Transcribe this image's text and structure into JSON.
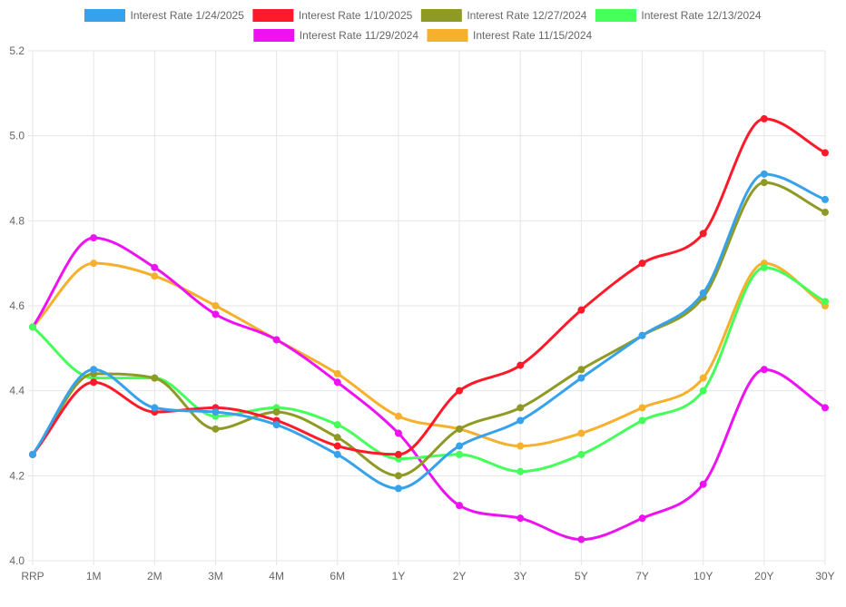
{
  "chart_data": {
    "type": "line",
    "categories": [
      "RRP",
      "1M",
      "2M",
      "3M",
      "4M",
      "6M",
      "1Y",
      "2Y",
      "3Y",
      "5Y",
      "7Y",
      "10Y",
      "20Y",
      "30Y"
    ],
    "ylim": [
      4.0,
      5.2
    ],
    "yticks": [
      "4.0",
      "4.2",
      "4.4",
      "4.6",
      "4.8",
      "5.0",
      "5.2"
    ],
    "grid": true,
    "legend_position": "top",
    "series": [
      {
        "name": "Interest Rate 1/24/2025",
        "color": "#36a2eb",
        "values": [
          4.25,
          4.45,
          4.36,
          4.35,
          4.32,
          4.25,
          4.17,
          4.27,
          4.33,
          4.43,
          4.53,
          4.63,
          4.91,
          4.85
        ]
      },
      {
        "name": "Interest Rate 1/10/2025",
        "color": "#ff1a2a",
        "values": [
          4.25,
          4.42,
          4.35,
          4.36,
          4.33,
          4.27,
          4.25,
          4.4,
          4.46,
          4.59,
          4.7,
          4.77,
          5.04,
          4.96
        ]
      },
      {
        "name": "Interest Rate 12/27/2024",
        "color": "#8f9a25",
        "values": [
          4.25,
          4.44,
          4.43,
          4.31,
          4.35,
          4.29,
          4.2,
          4.31,
          4.36,
          4.45,
          4.53,
          4.62,
          4.89,
          4.82
        ]
      },
      {
        "name": "Interest Rate 12/13/2024",
        "color": "#45ff5a",
        "values": [
          4.55,
          4.43,
          4.43,
          4.34,
          4.36,
          4.32,
          4.24,
          4.25,
          4.21,
          4.25,
          4.33,
          4.4,
          4.69,
          4.61
        ]
      },
      {
        "name": "Interest Rate 11/29/2024",
        "color": "#ee12f2",
        "values": [
          4.55,
          4.76,
          4.69,
          4.58,
          4.52,
          4.42,
          4.3,
          4.13,
          4.1,
          4.05,
          4.1,
          4.18,
          4.45,
          4.36
        ]
      },
      {
        "name": "Interest Rate 11/15/2024",
        "color": "#f7b02c",
        "values": [
          4.55,
          4.7,
          4.67,
          4.6,
          4.52,
          4.44,
          4.34,
          4.31,
          4.27,
          4.3,
          4.36,
          4.43,
          4.7,
          4.6
        ]
      }
    ]
  }
}
